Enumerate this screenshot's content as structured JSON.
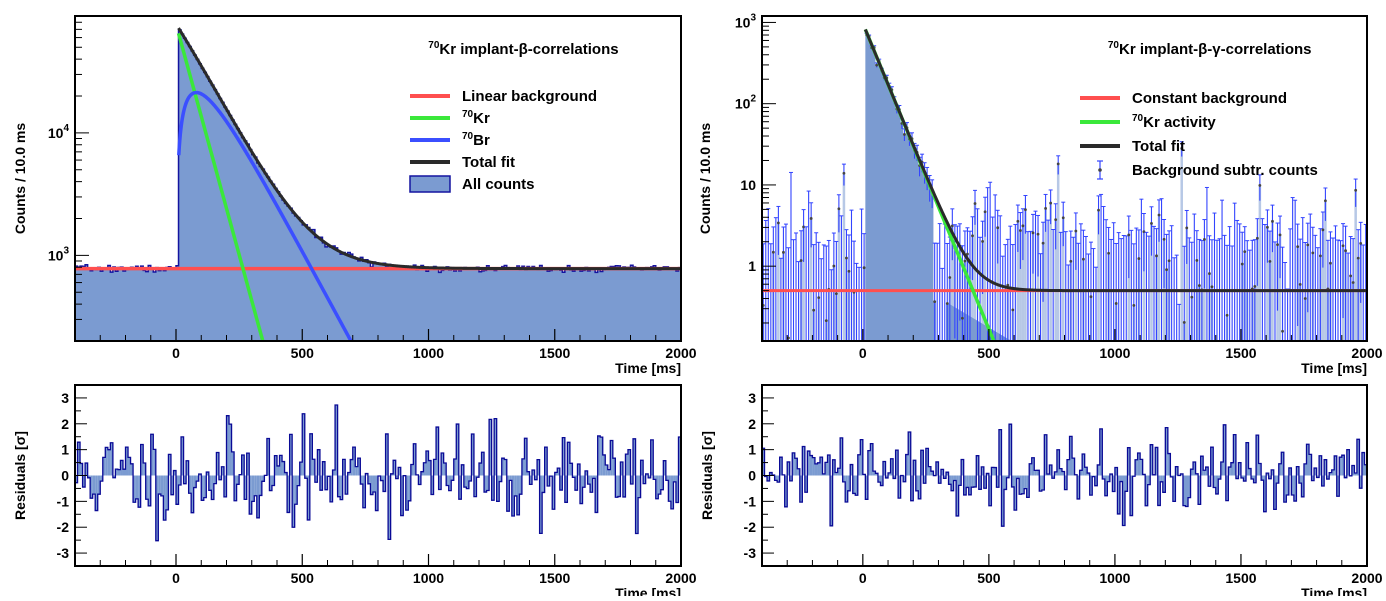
{
  "colors": {
    "fill": "#7b9bd1",
    "histLine": "#1414a0",
    "background": "#ff4f4f",
    "kr": "#3ae83a",
    "br": "#3b4fff",
    "total": "#2a2a2a",
    "errBar": "#3344ff",
    "marker": "#444444",
    "residFill": "#7b9bd1",
    "residLine": "#0a0a96"
  },
  "chart_data": [
    {
      "id": "left_top",
      "type": "area",
      "scale": "log",
      "title": "Kr implant-β-correlations",
      "title_sup": "70",
      "xlabel": "Time [ms]",
      "ylabel": "Counts / 10.0 ms",
      "xlim": [
        -400,
        2000
      ],
      "ylim": [
        200,
        90000
      ],
      "xticks": [
        0,
        500,
        1000,
        1500,
        2000
      ],
      "yticks": [
        {
          "v": 1000,
          "base": "10",
          "exp": "3"
        },
        {
          "v": 10000,
          "base": "10",
          "exp": "4"
        }
      ],
      "legend": [
        {
          "label": "Linear background",
          "sup": "",
          "kind": "line",
          "color": "background"
        },
        {
          "label": "Kr",
          "sup": "70",
          "kind": "line",
          "color": "kr"
        },
        {
          "label": "Br",
          "sup": "70",
          "kind": "line",
          "color": "br"
        },
        {
          "label": "Total fit",
          "sup": "",
          "kind": "line",
          "color": "total"
        },
        {
          "label": "All counts",
          "sup": "",
          "kind": "box",
          "color": "fill"
        }
      ],
      "model": {
        "t0": 10,
        "background": 780,
        "kr_amp": 65000,
        "kr_halflife": 40,
        "br_amp": 66000,
        "br_halflife": 79,
        "hist_bin": 10
      }
    },
    {
      "id": "right_top",
      "type": "scatter",
      "scale": "log",
      "title": "Kr implant-β-γ-correlations",
      "title_sup": "70",
      "xlabel": "Time [ms]",
      "ylabel": "Counts / 10.0 ms",
      "xlim": [
        -400,
        2000
      ],
      "ylim": [
        0.12,
        1200
      ],
      "xticks": [
        0,
        500,
        1000,
        1500,
        2000
      ],
      "yticks": [
        {
          "v": 1,
          "base": "1",
          "exp": ""
        },
        {
          "v": 10,
          "base": "10",
          "exp": ""
        },
        {
          "v": 100,
          "base": "10",
          "exp": "2"
        },
        {
          "v": 1000,
          "base": "10",
          "exp": "3"
        }
      ],
      "legend": [
        {
          "label": "Constant background",
          "sup": "",
          "kind": "line",
          "color": "background"
        },
        {
          "label": "Kr activity",
          "sup": "70",
          "kind": "line",
          "color": "kr"
        },
        {
          "label": "Total fit",
          "sup": "",
          "kind": "line",
          "color": "total"
        },
        {
          "label": "Background subtr. counts",
          "sup": "",
          "kind": "err",
          "color": "errBar"
        }
      ],
      "model": {
        "t0": 10,
        "background": 0.5,
        "kr_amp": 820,
        "kr_halflife": 40,
        "hist_bin": 10
      }
    },
    {
      "id": "left_bottom",
      "type": "bar",
      "xlabel": "Time [ms]",
      "ylabel": "Residuals [σ]",
      "xlim": [
        -400,
        2000
      ],
      "ylim": [
        -3.5,
        3.5
      ],
      "xticks": [
        0,
        500,
        1000,
        1500,
        2000
      ],
      "yticks": [
        -3,
        -2,
        -1,
        0,
        1,
        2,
        3
      ],
      "bin": 10,
      "seed": 11,
      "spread": 1.0
    },
    {
      "id": "right_bottom",
      "type": "bar",
      "xlabel": "Time [ms]",
      "ylabel": "Residuals [σ]",
      "xlim": [
        -400,
        2000
      ],
      "ylim": [
        -3.5,
        3.5
      ],
      "xticks": [
        0,
        500,
        1000,
        1500,
        2000
      ],
      "yticks": [
        -3,
        -2,
        -1,
        0,
        1,
        2,
        3
      ],
      "bin": 10,
      "seed": 29,
      "spread": 0.75
    }
  ]
}
